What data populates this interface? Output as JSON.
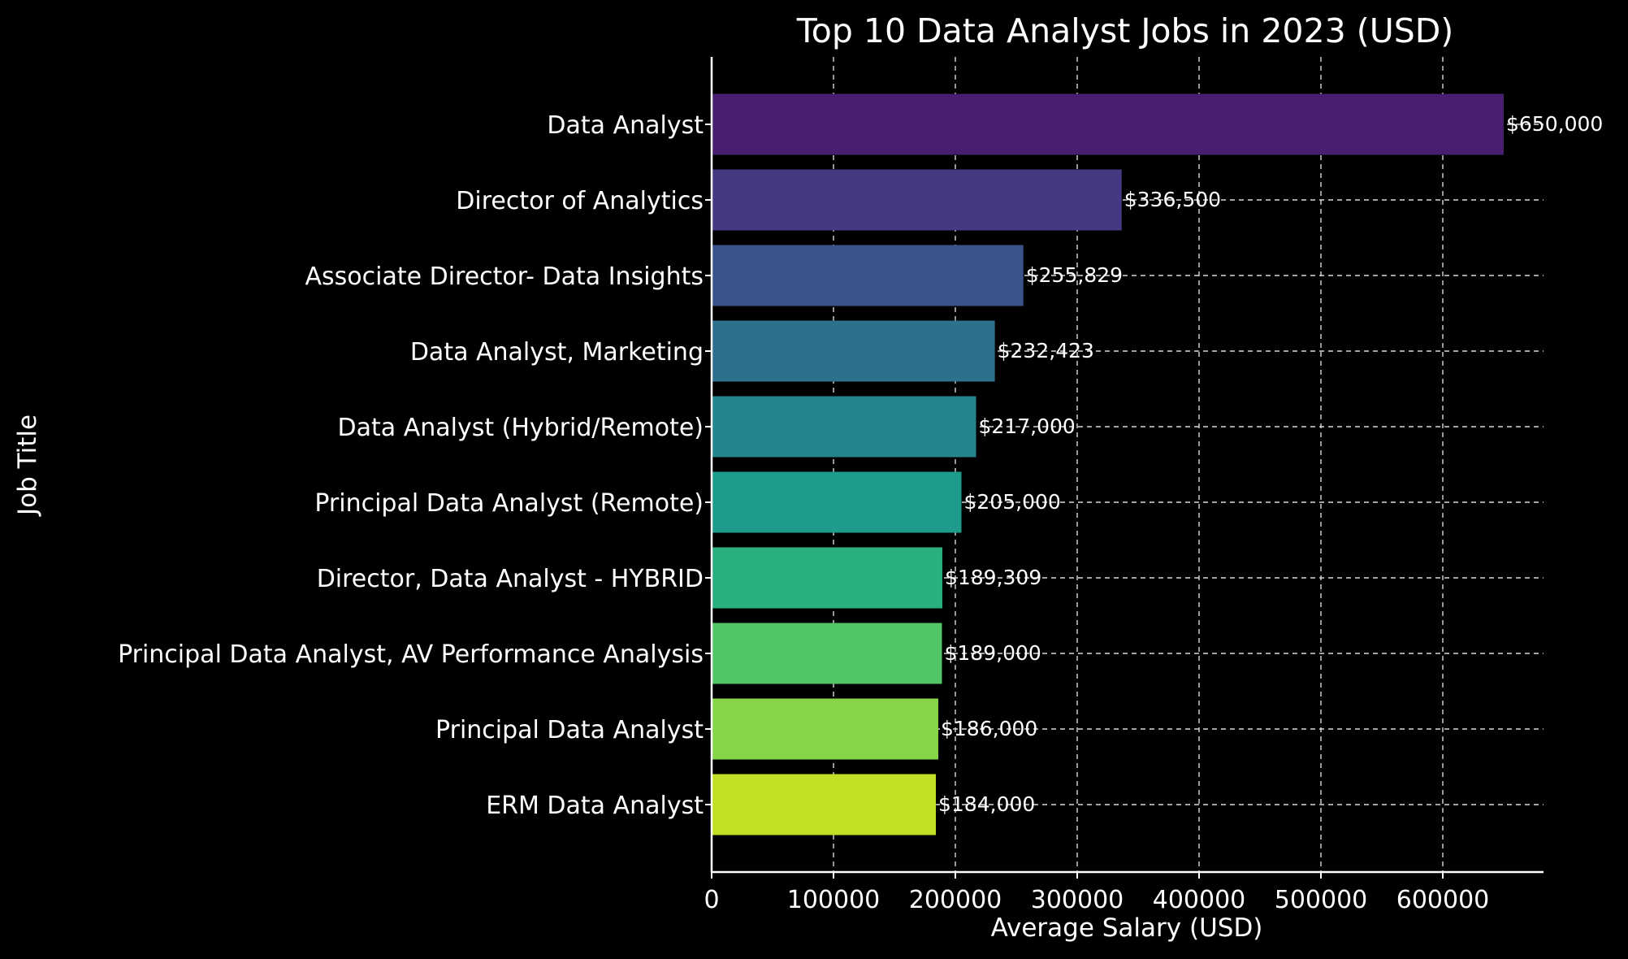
{
  "chart_data": {
    "type": "bar",
    "orientation": "horizontal",
    "title": "Top 10 Data Analyst Jobs in 2023 (USD)",
    "xlabel": "Average Salary (USD)",
    "ylabel": "Job Title",
    "xlim": [
      0,
      685000
    ],
    "x_ticks": [
      0,
      100000,
      200000,
      300000,
      400000,
      500000,
      600000
    ],
    "x_tick_labels": [
      "0",
      "100000",
      "200000",
      "300000",
      "400000",
      "500000",
      "600000"
    ],
    "grid": true,
    "categories": [
      "Data Analyst",
      "Director of Analytics",
      "Associate Director- Data Insights",
      "Data Analyst, Marketing",
      "Data Analyst (Hybrid/Remote)",
      "Principal Data Analyst (Remote)",
      "Director, Data Analyst - HYBRID",
      "Principal Data Analyst, AV Performance Analysis",
      "Principal Data Analyst",
      "ERM Data Analyst"
    ],
    "values": [
      650000,
      336500,
      255829,
      232423,
      217000,
      205000,
      189309,
      189000,
      186000,
      184000
    ],
    "value_labels": [
      "$650,000",
      "$336,500",
      "$255,829",
      "$232,423",
      "$217,000",
      "$205,000",
      "$189,309",
      "$189,000",
      "$186,000",
      "$184,000"
    ],
    "colors": [
      "#481f70",
      "#443983",
      "#3b528b",
      "#2d708e",
      "#25858e",
      "#1e9b8a",
      "#2ab07f",
      "#52c569",
      "#86d549",
      "#c2df23"
    ]
  }
}
